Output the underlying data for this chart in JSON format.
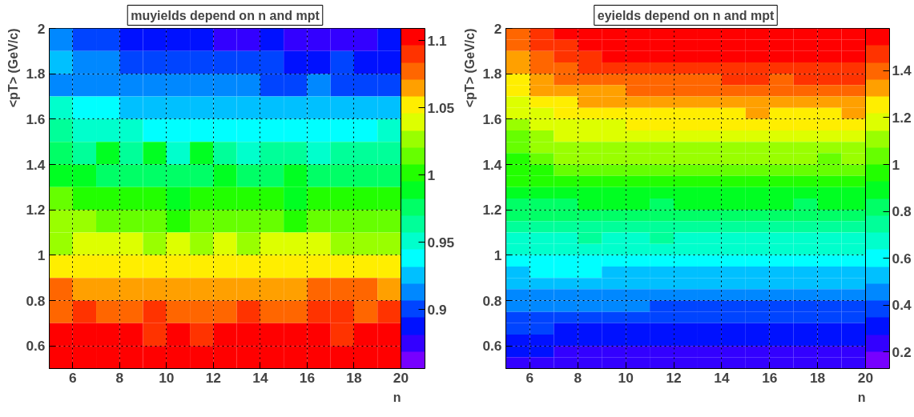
{
  "chart_data": [
    {
      "type": "heatmap",
      "title": "muyields depend on n and mpt",
      "xlabel": "n",
      "ylabel": "<pT> (GeV/c)",
      "x": [
        5.5,
        6.5,
        7.5,
        8.5,
        9.5,
        10.5,
        11.5,
        12.5,
        13.5,
        14.5,
        15.5,
        16.5,
        17.5,
        18.5,
        19.5
      ],
      "y": [
        1.95,
        1.85,
        1.75,
        1.65,
        1.55,
        1.45,
        1.35,
        1.25,
        1.15,
        1.05,
        0.95,
        0.85,
        0.75,
        0.65,
        0.55
      ],
      "xlim": [
        5,
        20
      ],
      "xticks": [
        6,
        8,
        10,
        12,
        14,
        16,
        18,
        20
      ],
      "ylim": [
        0.5,
        2
      ],
      "yticks": [
        0.6,
        0.8,
        1,
        1.2,
        1.4,
        1.6,
        1.8,
        2
      ],
      "clim": [
        0.856,
        1.109
      ],
      "cticks": [
        0.9,
        0.95,
        1,
        1.05,
        1.1
      ],
      "grid": true,
      "cells": [
        [
          0.913,
          0.9,
          0.9,
          0.888,
          0.888,
          0.888,
          0.888,
          0.875,
          0.875,
          0.888,
          0.875,
          0.875,
          0.875,
          0.875,
          0.888
        ],
        [
          0.926,
          0.913,
          0.913,
          0.9,
          0.9,
          0.9,
          0.9,
          0.9,
          0.9,
          0.9,
          0.888,
          0.888,
          0.9,
          0.888,
          0.888
        ],
        [
          0.913,
          0.913,
          0.913,
          0.913,
          0.913,
          0.913,
          0.913,
          0.913,
          0.913,
          0.9,
          0.9,
          0.913,
          0.9,
          0.9,
          0.9
        ],
        [
          0.951,
          0.938,
          0.938,
          0.926,
          0.926,
          0.926,
          0.926,
          0.926,
          0.926,
          0.926,
          0.926,
          0.926,
          0.926,
          0.926,
          0.926
        ],
        [
          0.964,
          0.951,
          0.951,
          0.951,
          0.938,
          0.938,
          0.938,
          0.938,
          0.938,
          0.938,
          0.938,
          0.938,
          0.938,
          0.938,
          0.951
        ],
        [
          0.976,
          0.964,
          0.989,
          0.964,
          0.989,
          0.951,
          0.989,
          0.964,
          0.951,
          0.964,
          0.964,
          0.951,
          0.964,
          0.964,
          0.964
        ],
        [
          0.989,
          0.989,
          0.976,
          0.976,
          0.976,
          0.976,
          0.976,
          0.989,
          0.976,
          0.976,
          0.989,
          0.976,
          0.976,
          0.976,
          0.976
        ],
        [
          1.014,
          1.001,
          1.001,
          1.001,
          1.001,
          0.989,
          1.001,
          1.001,
          1.001,
          1.001,
          0.989,
          1.001,
          1.001,
          1.001,
          1.001
        ],
        [
          1.027,
          1.027,
          1.014,
          1.014,
          1.014,
          1.001,
          1.014,
          1.014,
          1.014,
          1.014,
          1.001,
          1.014,
          1.014,
          1.014,
          1.014
        ],
        [
          1.027,
          1.039,
          1.039,
          1.039,
          1.027,
          1.039,
          1.027,
          1.039,
          1.027,
          1.039,
          1.039,
          1.039,
          1.027,
          1.027,
          1.027
        ],
        [
          1.052,
          1.052,
          1.052,
          1.052,
          1.052,
          1.052,
          1.052,
          1.052,
          1.052,
          1.052,
          1.052,
          1.052,
          1.052,
          1.052,
          1.052
        ],
        [
          1.077,
          1.065,
          1.065,
          1.065,
          1.065,
          1.065,
          1.065,
          1.065,
          1.065,
          1.065,
          1.065,
          1.077,
          1.077,
          1.077,
          1.065
        ],
        [
          1.077,
          1.09,
          1.077,
          1.077,
          1.09,
          1.077,
          1.077,
          1.077,
          1.09,
          1.077,
          1.077,
          1.09,
          1.09,
          1.077,
          1.09
        ],
        [
          1.103,
          1.103,
          1.103,
          1.103,
          1.09,
          1.103,
          1.09,
          1.103,
          1.103,
          1.103,
          1.103,
          1.103,
          1.09,
          1.103,
          1.103
        ],
        [
          1.103,
          1.103,
          1.103,
          1.103,
          1.103,
          1.103,
          1.103,
          1.103,
          1.103,
          1.103,
          1.103,
          1.103,
          1.103,
          1.103,
          1.103
        ]
      ]
    },
    {
      "type": "heatmap",
      "title": "eyields depend on n and mpt",
      "xlabel": "n",
      "ylabel": "<pT> (GeV/c)",
      "x": [
        5.5,
        6.5,
        7.5,
        8.5,
        9.5,
        10.5,
        11.5,
        12.5,
        13.5,
        14.5,
        15.5,
        16.5,
        17.5,
        18.5,
        19.5
      ],
      "y": [
        1.975,
        1.925,
        1.875,
        1.825,
        1.775,
        1.725,
        1.675,
        1.625,
        1.575,
        1.525,
        1.475,
        1.425,
        1.375,
        1.325,
        1.275,
        1.225,
        1.175,
        1.125,
        1.075,
        1.025,
        0.975,
        0.925,
        0.875,
        0.825,
        0.775,
        0.725,
        0.675,
        0.625,
        0.575,
        0.525
      ],
      "xlim": [
        5,
        20
      ],
      "xticks": [
        6,
        8,
        10,
        12,
        14,
        16,
        18,
        20
      ],
      "ylim": [
        0.5,
        2
      ],
      "yticks": [
        0.6,
        0.8,
        1,
        1.2,
        1.4,
        1.6,
        1.8,
        2
      ],
      "clim": [
        0.13,
        1.58
      ],
      "cticks": [
        0.2,
        0.4,
        0.6,
        0.8,
        1,
        1.2,
        1.4
      ],
      "grid": true,
      "cells": [
        [
          1.399,
          1.471,
          1.544,
          1.544,
          1.544,
          1.544,
          1.544,
          1.544,
          1.544,
          1.544,
          1.544,
          1.544,
          1.544,
          1.544,
          1.544
        ],
        [
          1.399,
          1.471,
          1.471,
          1.544,
          1.544,
          1.544,
          1.544,
          1.544,
          1.544,
          1.544,
          1.544,
          1.544,
          1.544,
          1.544,
          1.544
        ],
        [
          1.326,
          1.399,
          1.471,
          1.471,
          1.544,
          1.544,
          1.544,
          1.544,
          1.544,
          1.544,
          1.544,
          1.544,
          1.544,
          1.544,
          1.544
        ],
        [
          1.326,
          1.399,
          1.399,
          1.471,
          1.471,
          1.471,
          1.471,
          1.471,
          1.471,
          1.471,
          1.471,
          1.471,
          1.471,
          1.471,
          1.471
        ],
        [
          1.254,
          1.326,
          1.399,
          1.399,
          1.399,
          1.399,
          1.399,
          1.399,
          1.399,
          1.471,
          1.471,
          1.399,
          1.471,
          1.471,
          1.471
        ],
        [
          1.254,
          1.326,
          1.326,
          1.326,
          1.326,
          1.399,
          1.399,
          1.399,
          1.399,
          1.399,
          1.399,
          1.399,
          1.399,
          1.399,
          1.399
        ],
        [
          1.181,
          1.254,
          1.254,
          1.326,
          1.326,
          1.326,
          1.326,
          1.326,
          1.326,
          1.326,
          1.326,
          1.326,
          1.326,
          1.326,
          1.326
        ],
        [
          1.181,
          1.181,
          1.254,
          1.254,
          1.254,
          1.254,
          1.254,
          1.254,
          1.254,
          1.254,
          1.326,
          1.254,
          1.254,
          1.254,
          1.326
        ],
        [
          1.109,
          1.181,
          1.181,
          1.181,
          1.181,
          1.254,
          1.254,
          1.254,
          1.254,
          1.254,
          1.254,
          1.254,
          1.254,
          1.254,
          1.254
        ],
        [
          1.036,
          1.109,
          1.181,
          1.181,
          1.181,
          1.181,
          1.181,
          1.181,
          1.181,
          1.181,
          1.181,
          1.181,
          1.181,
          1.181,
          1.181
        ],
        [
          1.036,
          1.109,
          1.109,
          1.109,
          1.109,
          1.109,
          1.109,
          1.109,
          1.109,
          1.109,
          1.109,
          1.109,
          1.109,
          1.109,
          1.109
        ],
        [
          0.964,
          1.036,
          1.109,
          1.109,
          1.109,
          1.109,
          1.109,
          1.109,
          1.109,
          1.109,
          1.109,
          1.109,
          1.109,
          1.036,
          1.109
        ],
        [
          0.964,
          0.964,
          1.036,
          1.036,
          1.036,
          1.036,
          1.036,
          1.036,
          1.036,
          1.036,
          1.036,
          1.036,
          1.036,
          1.036,
          1.036
        ],
        [
          0.964,
          0.964,
          0.964,
          0.964,
          0.964,
          0.964,
          0.964,
          0.964,
          0.964,
          0.964,
          0.964,
          0.964,
          0.964,
          0.964,
          0.964
        ],
        [
          0.891,
          0.891,
          0.891,
          0.891,
          0.891,
          0.891,
          0.891,
          0.891,
          0.891,
          0.891,
          0.891,
          0.891,
          0.891,
          0.891,
          0.891
        ],
        [
          0.819,
          0.819,
          0.819,
          0.891,
          0.891,
          0.891,
          0.819,
          0.891,
          0.891,
          0.891,
          0.891,
          0.891,
          0.819,
          0.891,
          0.891
        ],
        [
          0.819,
          0.819,
          0.819,
          0.819,
          0.819,
          0.819,
          0.819,
          0.819,
          0.819,
          0.819,
          0.819,
          0.819,
          0.819,
          0.819,
          0.819
        ],
        [
          0.746,
          0.746,
          0.746,
          0.746,
          0.746,
          0.746,
          0.746,
          0.746,
          0.746,
          0.746,
          0.746,
          0.746,
          0.746,
          0.746,
          0.746
        ],
        [
          0.674,
          0.674,
          0.674,
          0.746,
          0.674,
          0.674,
          0.746,
          0.674,
          0.674,
          0.674,
          0.674,
          0.674,
          0.674,
          0.674,
          0.674
        ],
        [
          0.674,
          0.674,
          0.674,
          0.674,
          0.674,
          0.674,
          0.674,
          0.674,
          0.674,
          0.674,
          0.674,
          0.674,
          0.674,
          0.674,
          0.674
        ],
        [
          0.601,
          0.601,
          0.601,
          0.601,
          0.601,
          0.601,
          0.601,
          0.601,
          0.601,
          0.601,
          0.601,
          0.601,
          0.601,
          0.601,
          0.601
        ],
        [
          0.529,
          0.601,
          0.601,
          0.601,
          0.529,
          0.529,
          0.529,
          0.529,
          0.529,
          0.529,
          0.529,
          0.529,
          0.529,
          0.529,
          0.529
        ],
        [
          0.529,
          0.529,
          0.529,
          0.529,
          0.529,
          0.529,
          0.529,
          0.529,
          0.529,
          0.529,
          0.529,
          0.529,
          0.529,
          0.529,
          0.529
        ],
        [
          0.456,
          0.456,
          0.456,
          0.456,
          0.456,
          0.456,
          0.456,
          0.456,
          0.456,
          0.456,
          0.456,
          0.456,
          0.456,
          0.456,
          0.456
        ],
        [
          0.456,
          0.456,
          0.456,
          0.456,
          0.456,
          0.456,
          0.384,
          0.384,
          0.384,
          0.384,
          0.384,
          0.384,
          0.384,
          0.384,
          0.384
        ],
        [
          0.384,
          0.384,
          0.384,
          0.384,
          0.384,
          0.384,
          0.384,
          0.384,
          0.384,
          0.384,
          0.384,
          0.384,
          0.384,
          0.384,
          0.384
        ],
        [
          0.384,
          0.384,
          0.311,
          0.311,
          0.311,
          0.311,
          0.311,
          0.311,
          0.311,
          0.311,
          0.311,
          0.311,
          0.311,
          0.311,
          0.311
        ],
        [
          0.311,
          0.311,
          0.311,
          0.311,
          0.311,
          0.311,
          0.311,
          0.311,
          0.311,
          0.311,
          0.311,
          0.311,
          0.311,
          0.311,
          0.311
        ],
        [
          0.311,
          0.311,
          0.239,
          0.239,
          0.239,
          0.239,
          0.239,
          0.239,
          0.239,
          0.239,
          0.239,
          0.239,
          0.239,
          0.239,
          0.239
        ],
        [
          0.239,
          0.239,
          0.239,
          0.239,
          0.239,
          0.239,
          0.239,
          0.239,
          0.239,
          0.239,
          0.239,
          0.239,
          0.239,
          0.239,
          0.239
        ]
      ]
    }
  ]
}
